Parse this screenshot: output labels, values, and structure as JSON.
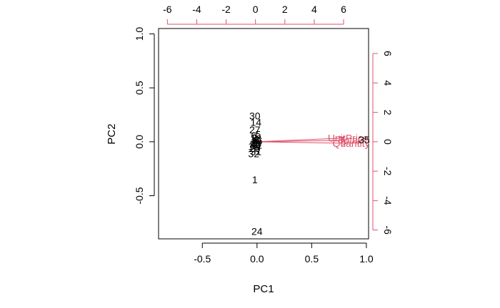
{
  "chart_data": {
    "type": "scatter",
    "title": "",
    "xlabel": "PC1",
    "ylabel": "PC2",
    "xlim": [
      -0.9,
      1.02
    ],
    "ylim": [
      -0.9,
      1.05
    ],
    "xticks": [
      "-0.5",
      "0.0",
      "0.5",
      "1.0"
    ],
    "yticks": [
      "-0.5",
      "0.0",
      "0.5",
      "1.0"
    ],
    "top_axis_ticks": [
      "-6",
      "-4",
      "-2",
      "0",
      "2",
      "4",
      "6"
    ],
    "right_axis_ticks": [
      "6",
      "4",
      "2",
      "0",
      "-2",
      "-4",
      "-6"
    ],
    "loading_axis_lim": [
      -6.6,
      7.7
    ],
    "grid": false,
    "colors": {
      "points": "#000000",
      "loadings": "#DF536B"
    },
    "points": [
      {
        "label": "30",
        "x": -0.02,
        "y": 0.24
      },
      {
        "label": "14",
        "x": -0.01,
        "y": 0.18
      },
      {
        "label": "27",
        "x": -0.02,
        "y": 0.11
      },
      {
        "label": "6",
        "x": -0.03,
        "y": 0.06
      },
      {
        "label": "5",
        "x": 0.01,
        "y": 0.07
      },
      {
        "label": "3",
        "x": -0.02,
        "y": 0.04
      },
      {
        "label": "8",
        "x": 0.0,
        "y": 0.02
      },
      {
        "label": "2",
        "x": -0.03,
        "y": 0.0
      },
      {
        "label": "9",
        "x": -0.02,
        "y": -0.01
      },
      {
        "label": "10",
        "x": -0.01,
        "y": -0.02
      },
      {
        "label": "11",
        "x": 0.0,
        "y": -0.03
      },
      {
        "label": "12",
        "x": -0.03,
        "y": -0.04
      },
      {
        "label": "15",
        "x": -0.02,
        "y": -0.02
      },
      {
        "label": "16",
        "x": 0.0,
        "y": 0.01
      },
      {
        "label": "18",
        "x": -0.01,
        "y": 0.03
      },
      {
        "label": "25",
        "x": -0.02,
        "y": -0.06
      },
      {
        "label": "31",
        "x": -0.01,
        "y": -0.09
      },
      {
        "label": "32",
        "x": -0.03,
        "y": -0.11
      },
      {
        "label": "1",
        "x": -0.02,
        "y": -0.35
      },
      {
        "label": "24",
        "x": 0.0,
        "y": -0.83
      },
      {
        "label": "35",
        "x": 0.98,
        "y": 0.02
      }
    ],
    "loadings": [
      {
        "label": "UnitPrice",
        "x": 6.0,
        "y": 0.25
      },
      {
        "label": "Quantity",
        "x": 6.2,
        "y": -0.1
      },
      {
        "label": "Total",
        "x": 6.1,
        "y": 0.1
      }
    ]
  }
}
